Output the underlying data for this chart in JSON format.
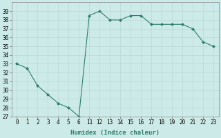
{
  "x_indices": [
    0,
    1,
    2,
    3,
    4,
    5,
    6,
    7,
    8,
    9,
    10,
    11,
    12,
    13,
    14,
    15,
    16,
    17,
    18,
    19
  ],
  "x_labels": [
    "0",
    "1",
    "2",
    "3",
    "4",
    "5",
    "6",
    "11",
    "12",
    "13",
    "14",
    "15",
    "16",
    "17",
    "18",
    "19",
    "20",
    "21",
    "22",
    "23"
  ],
  "y": [
    33.0,
    32.5,
    30.5,
    29.5,
    28.5,
    28.0,
    27.0,
    38.5,
    39.0,
    38.0,
    38.0,
    38.5,
    38.5,
    37.5,
    37.5,
    37.5,
    37.5,
    37.0,
    35.5,
    35.0
  ],
  "line_color": "#2e7d6e",
  "marker_color": "#2e7d6e",
  "bg_color": "#cceae8",
  "grid_color": "#b8d8d6",
  "xlabel": "Humidex (Indice chaleur)",
  "ylim": [
    27,
    40
  ],
  "yticks": [
    27,
    28,
    29,
    30,
    31,
    32,
    33,
    34,
    35,
    36,
    37,
    38,
    39
  ]
}
